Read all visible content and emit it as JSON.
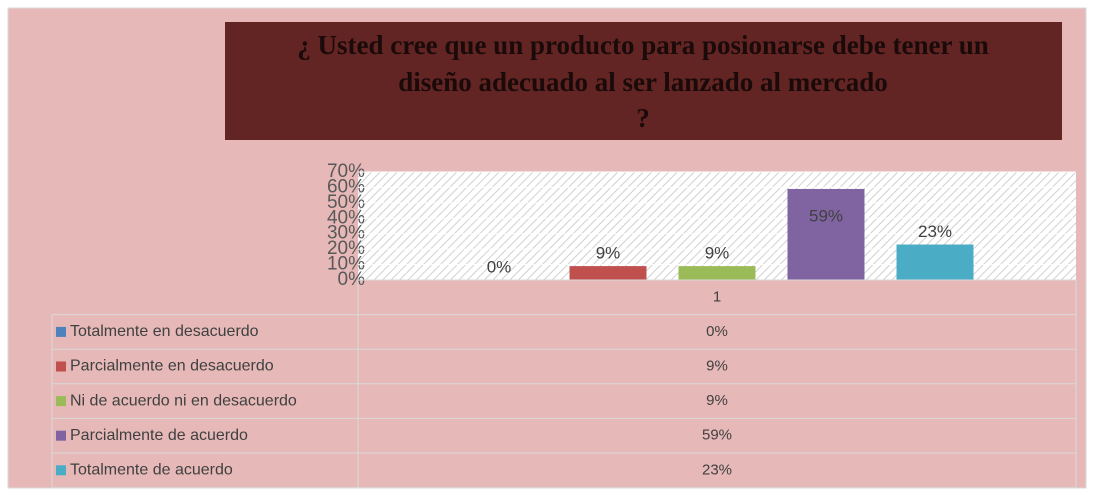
{
  "chart_data": {
    "type": "bar",
    "title": [
      "¿ Usted cree que un producto para posionarse debe tener un",
      "diseño adecuado al ser lanzado al mercado",
      "?"
    ],
    "categories": [
      "1"
    ],
    "series": [
      {
        "name": "Totalmente en desacuerdo",
        "color": "#4f81bd",
        "values": [
          0
        ],
        "value_labels": [
          "0%"
        ]
      },
      {
        "name": "Parcialmente en desacuerdo",
        "color": "#c0504d",
        "values": [
          9
        ],
        "value_labels": [
          "9%"
        ]
      },
      {
        "name": "Ni de acuerdo ni en desacuerdo",
        "color": "#9bbb59",
        "values": [
          9
        ],
        "value_labels": [
          "9%"
        ]
      },
      {
        "name": "Parcialmente de acuerdo",
        "color": "#8064a2",
        "values": [
          59
        ],
        "value_labels": [
          "59%"
        ]
      },
      {
        "name": "Totalmente de acuerdo",
        "color": "#4bacc6",
        "values": [
          23
        ],
        "value_labels": [
          "23%"
        ]
      }
    ],
    "ylim": [
      0,
      70
    ],
    "yticks": [
      {
        "value": 0,
        "label": "0%"
      },
      {
        "value": 10,
        "label": "10%"
      },
      {
        "value": 20,
        "label": "20%"
      },
      {
        "value": 30,
        "label": "30%"
      },
      {
        "value": 40,
        "label": "40%"
      },
      {
        "value": 50,
        "label": "50%"
      },
      {
        "value": 60,
        "label": "60%"
      },
      {
        "value": 70,
        "label": "70%"
      }
    ],
    "data_table": true
  }
}
